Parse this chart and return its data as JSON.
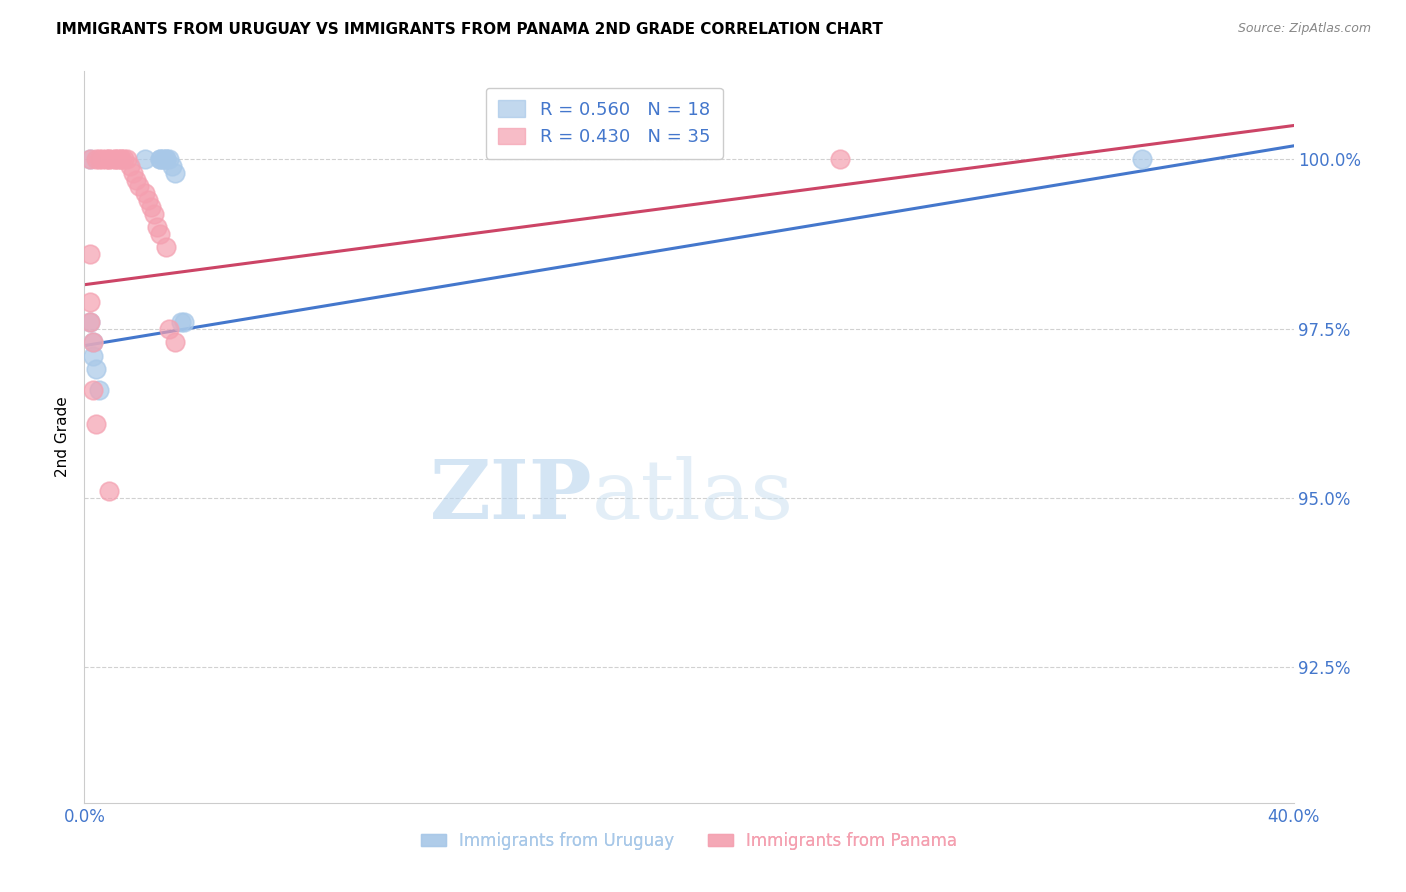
{
  "title": "IMMIGRANTS FROM URUGUAY VS IMMIGRANTS FROM PANAMA 2ND GRADE CORRELATION CHART",
  "source": "Source: ZipAtlas.com",
  "ylabel": "2nd Grade",
  "ylabel_ticks": [
    "100.0%",
    "97.5%",
    "95.0%",
    "92.5%"
  ],
  "ytick_vals": [
    1.0,
    0.975,
    0.95,
    0.925
  ],
  "xlim": [
    0.0,
    0.4
  ],
  "ylim": [
    0.905,
    1.013
  ],
  "legend_r_uruguay": "R = 0.560",
  "legend_n_uruguay": "N = 18",
  "legend_r_panama": "R = 0.430",
  "legend_n_panama": "N = 35",
  "legend_label_uruguay": "Immigrants from Uruguay",
  "legend_label_panama": "Immigrants from Panama",
  "color_uruguay": "#a8c8e8",
  "color_panama": "#f4a0b0",
  "trendline_color_uruguay": "#4477cc",
  "trendline_color_panama": "#cc4466",
  "tick_color": "#4477cc",
  "watermark_zip": "ZIP",
  "watermark_atlas": "atlas",
  "watermark_color": "#c8dff0",
  "uruguay_x": [
    0.002,
    0.02,
    0.025,
    0.025,
    0.026,
    0.027,
    0.027,
    0.028,
    0.029,
    0.03,
    0.032,
    0.033,
    0.002,
    0.003,
    0.003,
    0.004,
    0.005,
    0.35
  ],
  "uruguay_y": [
    1.0,
    1.0,
    1.0,
    1.0,
    1.0,
    1.0,
    1.0,
    1.0,
    0.999,
    0.998,
    0.976,
    0.976,
    0.976,
    0.973,
    0.971,
    0.969,
    0.966,
    1.0
  ],
  "panama_x": [
    0.002,
    0.004,
    0.005,
    0.006,
    0.007,
    0.008,
    0.008,
    0.01,
    0.01,
    0.011,
    0.012,
    0.012,
    0.013,
    0.014,
    0.015,
    0.016,
    0.017,
    0.018,
    0.02,
    0.021,
    0.022,
    0.023,
    0.024,
    0.025,
    0.027,
    0.028,
    0.03,
    0.002,
    0.002,
    0.002,
    0.003,
    0.003,
    0.004,
    0.008,
    0.25
  ],
  "panama_y": [
    1.0,
    1.0,
    1.0,
    1.0,
    1.0,
    1.0,
    1.0,
    1.0,
    1.0,
    1.0,
    1.0,
    1.0,
    1.0,
    1.0,
    0.999,
    0.998,
    0.997,
    0.996,
    0.995,
    0.994,
    0.993,
    0.992,
    0.99,
    0.989,
    0.987,
    0.975,
    0.973,
    0.986,
    0.979,
    0.976,
    0.973,
    0.966,
    0.961,
    0.951,
    1.0
  ],
  "trendline_uru_x0": 0.0,
  "trendline_uru_y0": 0.9725,
  "trendline_uru_x1": 0.4,
  "trendline_uru_y1": 1.002,
  "trendline_pan_x0": 0.0,
  "trendline_pan_y0": 0.9815,
  "trendline_pan_x1": 0.4,
  "trendline_pan_y1": 1.005
}
